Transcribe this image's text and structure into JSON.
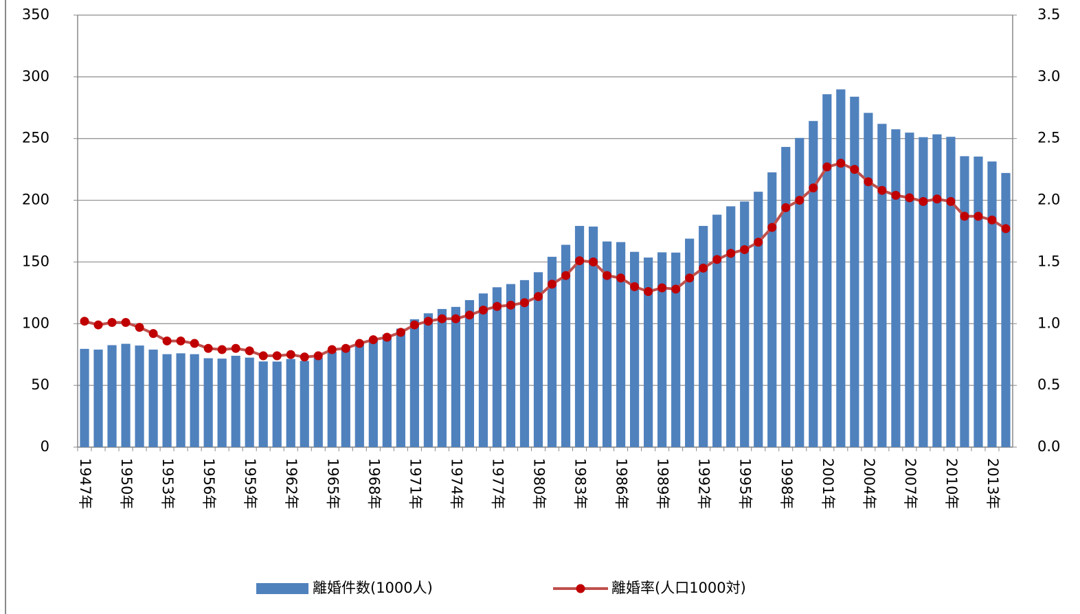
{
  "chart_data": {
    "type": "bar_line",
    "categories": [
      "1947年",
      null,
      null,
      "1950年",
      null,
      null,
      "1953年",
      null,
      null,
      "1956年",
      null,
      null,
      "1959年",
      null,
      null,
      "1962年",
      null,
      null,
      "1965年",
      null,
      null,
      "1968年",
      null,
      null,
      "1971年",
      null,
      null,
      "1974年",
      null,
      null,
      "1977年",
      null,
      null,
      "1980年",
      null,
      null,
      "1983年",
      null,
      null,
      "1986年",
      null,
      null,
      "1989年",
      null,
      null,
      "1992年",
      null,
      null,
      "1995年",
      null,
      null,
      "1998年",
      null,
      null,
      "2001年",
      null,
      null,
      "2004年",
      null,
      null,
      "2007年",
      null,
      null,
      "2010年",
      null,
      null,
      "2013年",
      null
    ],
    "series": [
      {
        "name": "離婚件数(1000人)",
        "type": "bar",
        "color": "#4f81bd",
        "values": [
          79.6,
          79.0,
          82.6,
          83.7,
          82.3,
          79.0,
          75.3,
          76.0,
          75.3,
          72.0,
          71.7,
          74.0,
          72.5,
          69.4,
          69.3,
          71.4,
          69.9,
          72.3,
          77.2,
          79.4,
          83.5,
          87.3,
          91.3,
          96.0,
          103.6,
          108.4,
          111.9,
          113.6,
          119.1,
          124.5,
          129.5,
          132.1,
          135.3,
          141.7,
          154.2,
          163.9,
          179.2,
          178.7,
          166.6,
          166.1,
          158.2,
          153.6,
          157.8,
          157.6,
          168.9,
          179.2,
          188.3,
          195.1,
          199.0,
          206.9,
          222.6,
          243.2,
          250.5,
          264.2,
          285.9,
          289.8,
          283.9,
          270.8,
          261.9,
          257.5,
          254.8,
          251.1,
          253.4,
          251.4,
          235.7,
          235.4,
          231.4,
          222.1
        ]
      },
      {
        "name": "離婚率(人口1000対)",
        "type": "line",
        "axis": "y2",
        "color": "#c0504d",
        "marker_color": "#c00000",
        "values": [
          1.02,
          0.99,
          1.01,
          1.01,
          0.97,
          0.92,
          0.86,
          0.86,
          0.84,
          0.8,
          0.79,
          0.8,
          0.78,
          0.74,
          0.74,
          0.75,
          0.73,
          0.74,
          0.79,
          0.8,
          0.84,
          0.87,
          0.89,
          0.93,
          0.99,
          1.02,
          1.04,
          1.04,
          1.07,
          1.11,
          1.14,
          1.15,
          1.17,
          1.22,
          1.32,
          1.39,
          1.51,
          1.5,
          1.39,
          1.37,
          1.3,
          1.26,
          1.29,
          1.28,
          1.37,
          1.45,
          1.52,
          1.57,
          1.6,
          1.66,
          1.78,
          1.94,
          2.0,
          2.1,
          2.27,
          2.3,
          2.25,
          2.15,
          2.08,
          2.04,
          2.02,
          1.99,
          2.01,
          1.99,
          1.87,
          1.87,
          1.84,
          1.77
        ]
      }
    ],
    "ylim": [
      0,
      350
    ],
    "yticks": [
      0,
      50,
      100,
      150,
      200,
      250,
      300,
      350
    ],
    "y2lim": [
      0,
      3.5
    ],
    "y2ticks": [
      {
        "value": 0,
        "label": "0.0"
      },
      0.5,
      {
        "value": 1,
        "label": "1.0"
      },
      1.5,
      {
        "value": 2,
        "label": "2.0"
      },
      2.5,
      {
        "value": 3,
        "label": "3.0"
      },
      3.5
    ],
    "grid": true,
    "legend": "bottom"
  }
}
